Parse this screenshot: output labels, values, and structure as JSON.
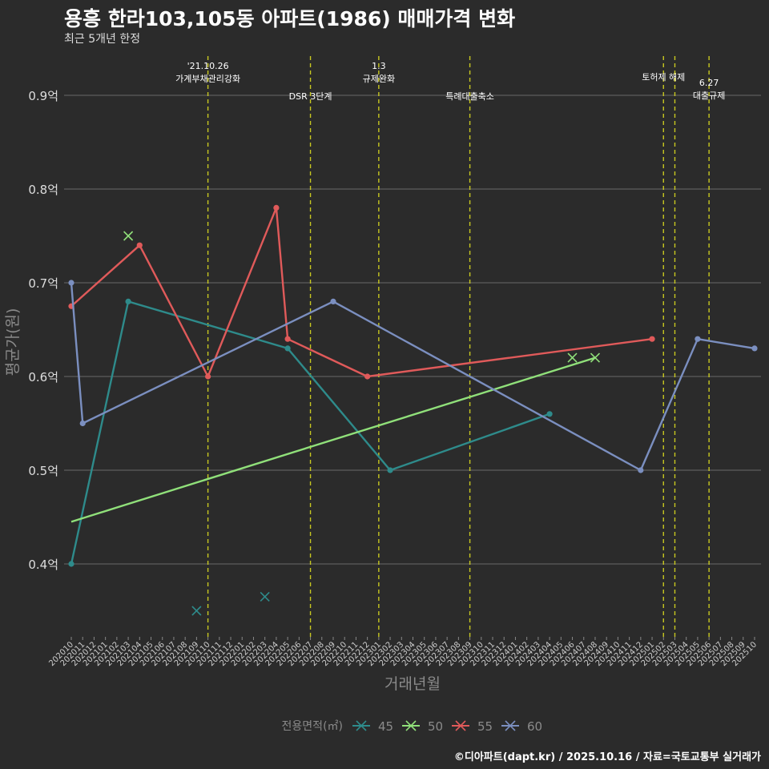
{
  "header": {
    "title": "용흥 한라103,105동 아파트(1986) 매매가격 변화",
    "subtitle": "최근 5개년 한정"
  },
  "footer": {
    "credit": "©디아파트(dapt.kr) / 2025.10.16 / 자료=국토교통부 실거래가"
  },
  "chart_data": {
    "type": "line",
    "title": "용흥 한라103,105동 아파트(1986) 매매가격 변화",
    "subtitle": "최근 5개년 한정",
    "xlabel": "거래년월",
    "ylabel": "평균가(원)",
    "ylim": [
      0.32,
      0.945
    ],
    "yticks": [
      0.4,
      0.5,
      0.6,
      0.7,
      0.8,
      0.9
    ],
    "ytick_labels": [
      "0.4억",
      "0.5억",
      "0.6억",
      "0.7억",
      "0.8억",
      "0.9억"
    ],
    "x_categories": [
      "202010",
      "202011",
      "202012",
      "202101",
      "202102",
      "202103",
      "202104",
      "202105",
      "202106",
      "202107",
      "202108",
      "202109",
      "202110",
      "202111",
      "202112",
      "202201",
      "202202",
      "202203",
      "202204",
      "202205",
      "202206",
      "202207",
      "202208",
      "202209",
      "202210",
      "202211",
      "202212",
      "202301",
      "202302",
      "202303",
      "202304",
      "202305",
      "202306",
      "202307",
      "202308",
      "202309",
      "202310",
      "202311",
      "202312",
      "202401",
      "202402",
      "202403",
      "202404",
      "202405",
      "202406",
      "202407",
      "202408",
      "202409",
      "202410",
      "202411",
      "202412",
      "202501",
      "202502",
      "202503",
      "202504",
      "202505",
      "202506",
      "202507",
      "202508",
      "202509",
      "202510"
    ],
    "legend_title": "전용면적(㎡)",
    "legend_position": "bottom",
    "series": [
      {
        "name": "45",
        "color": "#2e8b8b",
        "points": [
          [
            0,
            0.4
          ],
          [
            5,
            0.68
          ],
          [
            19,
            0.63
          ],
          [
            28,
            0.5
          ],
          [
            42,
            0.56
          ]
        ],
        "crosses": [
          [
            11,
            0.35
          ],
          [
            17,
            0.365
          ]
        ]
      },
      {
        "name": "50",
        "color": "#90e07a",
        "points": [],
        "trend": [
          [
            0,
            0.445
          ],
          [
            46,
            0.62
          ]
        ],
        "crosses": [
          [
            5,
            0.75
          ],
          [
            44,
            0.62
          ],
          [
            46,
            0.62
          ]
        ]
      },
      {
        "name": "55",
        "color": "#e05a5a",
        "points": [
          [
            0,
            0.675
          ],
          [
            6,
            0.74
          ],
          [
            12,
            0.6
          ],
          [
            18,
            0.78
          ],
          [
            19,
            0.64
          ],
          [
            26,
            0.6
          ],
          [
            51,
            0.64
          ]
        ],
        "crosses": []
      },
      {
        "name": "60",
        "color": "#7b8fc0",
        "points": [
          [
            0,
            0.7
          ],
          [
            1,
            0.55
          ],
          [
            23,
            0.68
          ],
          [
            50,
            0.5
          ],
          [
            55,
            0.64
          ],
          [
            60,
            0.63
          ]
        ],
        "crosses": []
      }
    ],
    "events": [
      {
        "month": "202110",
        "lines": [
          "'21.10.26",
          "가계부채관리강화"
        ],
        "row": 1
      },
      {
        "month": "202207",
        "lines": [
          "DSR 3단계"
        ],
        "row": 2
      },
      {
        "month": "202301",
        "lines": [
          "1.3",
          "규제완화"
        ],
        "row": 1
      },
      {
        "month": "202309",
        "lines": [
          "특례대출축소"
        ],
        "row": 2
      },
      {
        "month": "202502",
        "lines": [
          "토허제 해제"
        ],
        "row": 0
      },
      {
        "month": "202503",
        "lines": [
          ""
        ],
        "row": 0
      },
      {
        "month": "202506",
        "lines": [
          "6.27",
          "대출규제"
        ],
        "row": 3
      }
    ]
  }
}
